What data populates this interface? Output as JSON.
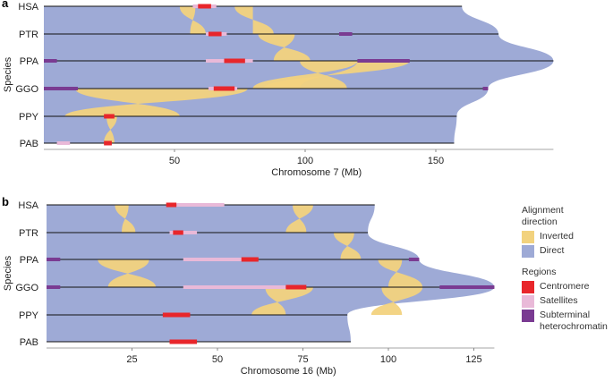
{
  "chart_data": [
    {
      "panel": "a",
      "type": "synteny",
      "xlabel": "Chromosome 7 (Mb)",
      "ylabel": "Species",
      "species": [
        "HSA",
        "PTR",
        "PPA",
        "GGO",
        "PPY",
        "PAB"
      ],
      "lengths": [
        160,
        174,
        195,
        170,
        158,
        157
      ],
      "xticks": [
        50,
        100,
        150
      ],
      "centromeres": [
        [
          59,
          64
        ],
        [
          63,
          68
        ],
        [
          69,
          77
        ],
        [
          65,
          73
        ],
        [
          23,
          27
        ],
        [
          23,
          26
        ]
      ],
      "satellites": [
        [
          57,
          66
        ],
        [
          62,
          70
        ],
        [
          62,
          80
        ],
        [
          63,
          74
        ],
        [
          0,
          0
        ],
        [
          5,
          10
        ]
      ],
      "heterochromatin": [
        [
          0,
          0
        ],
        [
          113,
          118
        ],
        [
          0,
          5,
          120,
          140
        ],
        [
          0,
          13,
          168,
          170
        ],
        [
          0,
          0
        ],
        [
          0,
          0
        ]
      ],
      "inversions": [
        [
          0,
          [
            52,
            58
          ],
          [
            56,
            62
          ]
        ],
        [
          0,
          [
            73,
            80
          ],
          [
            80,
            88
          ]
        ],
        [
          1,
          [
            82,
            96
          ],
          [
            88,
            102
          ]
        ],
        [
          2,
          [
            98,
            120
          ],
          [
            80,
            116
          ]
        ],
        [
          2,
          [
            120,
            140
          ],
          [
            84,
            98
          ]
        ],
        [
          3,
          [
            12,
            78
          ],
          [
            8,
            52
          ]
        ],
        [
          4,
          [
            24,
            28
          ],
          [
            23,
            27
          ]
        ]
      ]
    },
    {
      "panel": "b",
      "type": "synteny",
      "xlabel": "Chromosome 16 (Mb)",
      "ylabel": "Species",
      "species": [
        "HSA",
        "PTR",
        "PPA",
        "GGO",
        "PPY",
        "PAB"
      ],
      "lengths": [
        96,
        94,
        109,
        131,
        88,
        89
      ],
      "xticks": [
        25,
        50,
        75,
        100,
        125
      ],
      "centromeres": [
        [
          35,
          38
        ],
        [
          37,
          40
        ],
        [
          57,
          62
        ],
        [
          70,
          76
        ],
        [
          34,
          42
        ],
        [
          36,
          44
        ]
      ],
      "satellites": [
        [
          38,
          52
        ],
        [
          36,
          44
        ],
        [
          40,
          58
        ],
        [
          40,
          70
        ],
        [
          0,
          0
        ],
        [
          0,
          0
        ]
      ],
      "heterochromatin": [
        [
          0,
          0
        ],
        [
          0,
          0
        ],
        [
          0,
          4,
          106,
          109
        ],
        [
          0,
          4,
          115,
          131
        ],
        [
          0,
          0
        ],
        [
          0,
          0
        ]
      ],
      "inversions": [
        [
          0,
          [
            72,
            78
          ],
          [
            70,
            76
          ]
        ],
        [
          0,
          [
            20,
            24
          ],
          [
            22,
            26
          ]
        ],
        [
          1,
          [
            84,
            90
          ],
          [
            86,
            92
          ]
        ],
        [
          2,
          [
            15,
            30
          ],
          [
            18,
            32
          ]
        ],
        [
          2,
          [
            97,
            104
          ],
          [
            100,
            110
          ]
        ],
        [
          3,
          [
            64,
            78
          ],
          [
            60,
            70
          ]
        ],
        [
          3,
          [
            98,
            110
          ],
          [
            95,
            104
          ]
        ]
      ]
    }
  ],
  "legend": {
    "direction_title_1": "Alignment",
    "direction_title_2": "direction",
    "inverted": "Inverted",
    "direct": "Direct",
    "regions_title": "Regions",
    "centromere": "Centromere",
    "satellites": "Satellites",
    "subterminal_1": "Subterminal",
    "subterminal_2": "heterochromatin"
  },
  "colors": {
    "inverted": "#f2d27e",
    "direct": "#9eaad6",
    "centromere": "#e8262b",
    "satellites": "#e9b9d8",
    "heterochromatin": "#7a3b92"
  }
}
